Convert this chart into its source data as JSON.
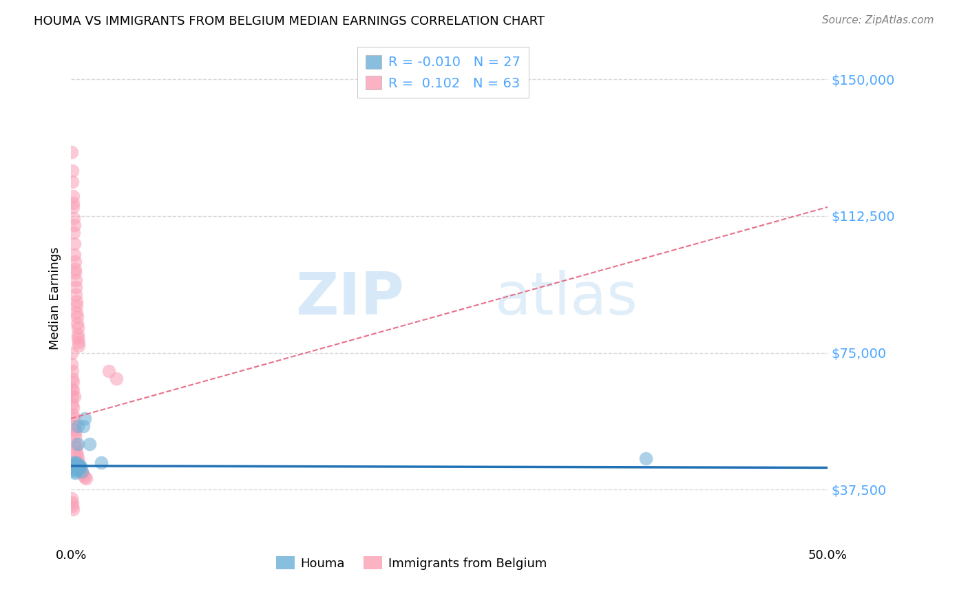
{
  "title": "HOUMA VS IMMIGRANTS FROM BELGIUM MEDIAN EARNINGS CORRELATION CHART",
  "source": "Source: ZipAtlas.com",
  "ylabel": "Median Earnings",
  "yticks": [
    37500,
    75000,
    112500,
    150000
  ],
  "ytick_labels": [
    "$37,500",
    "$75,000",
    "$112,500",
    "$150,000"
  ],
  "houma_R": "-0.010",
  "houma_N": "27",
  "belgium_R": "0.102",
  "belgium_N": "63",
  "watermark_zip": "ZIP",
  "watermark_atlas": "atlas",
  "houma_color": "#6baed6",
  "belgium_color": "#fa9fb5",
  "houma_line_color": "#2171b5",
  "belgium_line_color": "#e8708a",
  "background_color": "#ffffff",
  "grid_color": "#d9d9d9",
  "label_color": "#4da6ff",
  "xlim": [
    0.0,
    0.5
  ],
  "ylim": [
    22000,
    158000
  ],
  "houma_trend_x": [
    0.0,
    0.5
  ],
  "houma_trend_y": [
    44000,
    43500
  ],
  "belgium_trend_x": [
    0.0,
    0.5
  ],
  "belgium_trend_y": [
    57000,
    115000
  ],
  "houma_points": [
    [
      0.0008,
      44000
    ],
    [
      0.001,
      43500
    ],
    [
      0.0012,
      44500
    ],
    [
      0.0015,
      43000
    ],
    [
      0.0018,
      45000
    ],
    [
      0.002,
      42500
    ],
    [
      0.0022,
      44000
    ],
    [
      0.0025,
      43500
    ],
    [
      0.0028,
      42000
    ],
    [
      0.003,
      44000
    ],
    [
      0.0033,
      43000
    ],
    [
      0.0035,
      44500
    ],
    [
      0.0038,
      45000
    ],
    [
      0.004,
      43500
    ],
    [
      0.0043,
      50000
    ],
    [
      0.0045,
      55000
    ],
    [
      0.0048,
      44000
    ],
    [
      0.005,
      43000
    ],
    [
      0.0055,
      44000
    ],
    [
      0.006,
      43500
    ],
    [
      0.0065,
      44000
    ],
    [
      0.007,
      42500
    ],
    [
      0.008,
      55000
    ],
    [
      0.009,
      57000
    ],
    [
      0.012,
      50000
    ],
    [
      0.02,
      45000
    ],
    [
      0.38,
      46000
    ]
  ],
  "belgium_points": [
    [
      0.0005,
      130000
    ],
    [
      0.0008,
      122000
    ],
    [
      0.001,
      125000
    ],
    [
      0.0012,
      118000
    ],
    [
      0.0013,
      116000
    ],
    [
      0.0015,
      115000
    ],
    [
      0.0017,
      112000
    ],
    [
      0.0018,
      108000
    ],
    [
      0.002,
      110000
    ],
    [
      0.0022,
      105000
    ],
    [
      0.0023,
      102000
    ],
    [
      0.0025,
      100000
    ],
    [
      0.0027,
      98000
    ],
    [
      0.0028,
      97000
    ],
    [
      0.003,
      95000
    ],
    [
      0.0032,
      93000
    ],
    [
      0.0033,
      91000
    ],
    [
      0.0035,
      89000
    ],
    [
      0.0037,
      88000
    ],
    [
      0.0038,
      86000
    ],
    [
      0.004,
      85000
    ],
    [
      0.0042,
      83000
    ],
    [
      0.0043,
      82000
    ],
    [
      0.0045,
      80000
    ],
    [
      0.0047,
      79000
    ],
    [
      0.0048,
      78000
    ],
    [
      0.005,
      77000
    ],
    [
      0.0005,
      65000
    ],
    [
      0.0008,
      63000
    ],
    [
      0.001,
      61000
    ],
    [
      0.0012,
      60000
    ],
    [
      0.0015,
      58000
    ],
    [
      0.0018,
      57000
    ],
    [
      0.002,
      55000
    ],
    [
      0.0022,
      54000
    ],
    [
      0.0025,
      53000
    ],
    [
      0.0028,
      52000
    ],
    [
      0.003,
      50000
    ],
    [
      0.0033,
      49000
    ],
    [
      0.0035,
      48000
    ],
    [
      0.004,
      47000
    ],
    [
      0.0045,
      46000
    ],
    [
      0.005,
      45000
    ],
    [
      0.0055,
      44000
    ],
    [
      0.006,
      43500
    ],
    [
      0.0065,
      43000
    ],
    [
      0.007,
      42000
    ],
    [
      0.008,
      41500
    ],
    [
      0.009,
      41000
    ],
    [
      0.01,
      40500
    ],
    [
      0.0003,
      75000
    ],
    [
      0.0005,
      72000
    ],
    [
      0.0007,
      70000
    ],
    [
      0.001,
      68000
    ],
    [
      0.0012,
      67000
    ],
    [
      0.0015,
      65000
    ],
    [
      0.002,
      63000
    ],
    [
      0.025,
      70000
    ],
    [
      0.03,
      68000
    ],
    [
      0.0005,
      35000
    ],
    [
      0.0008,
      34000
    ],
    [
      0.001,
      33000
    ],
    [
      0.0015,
      32000
    ]
  ]
}
